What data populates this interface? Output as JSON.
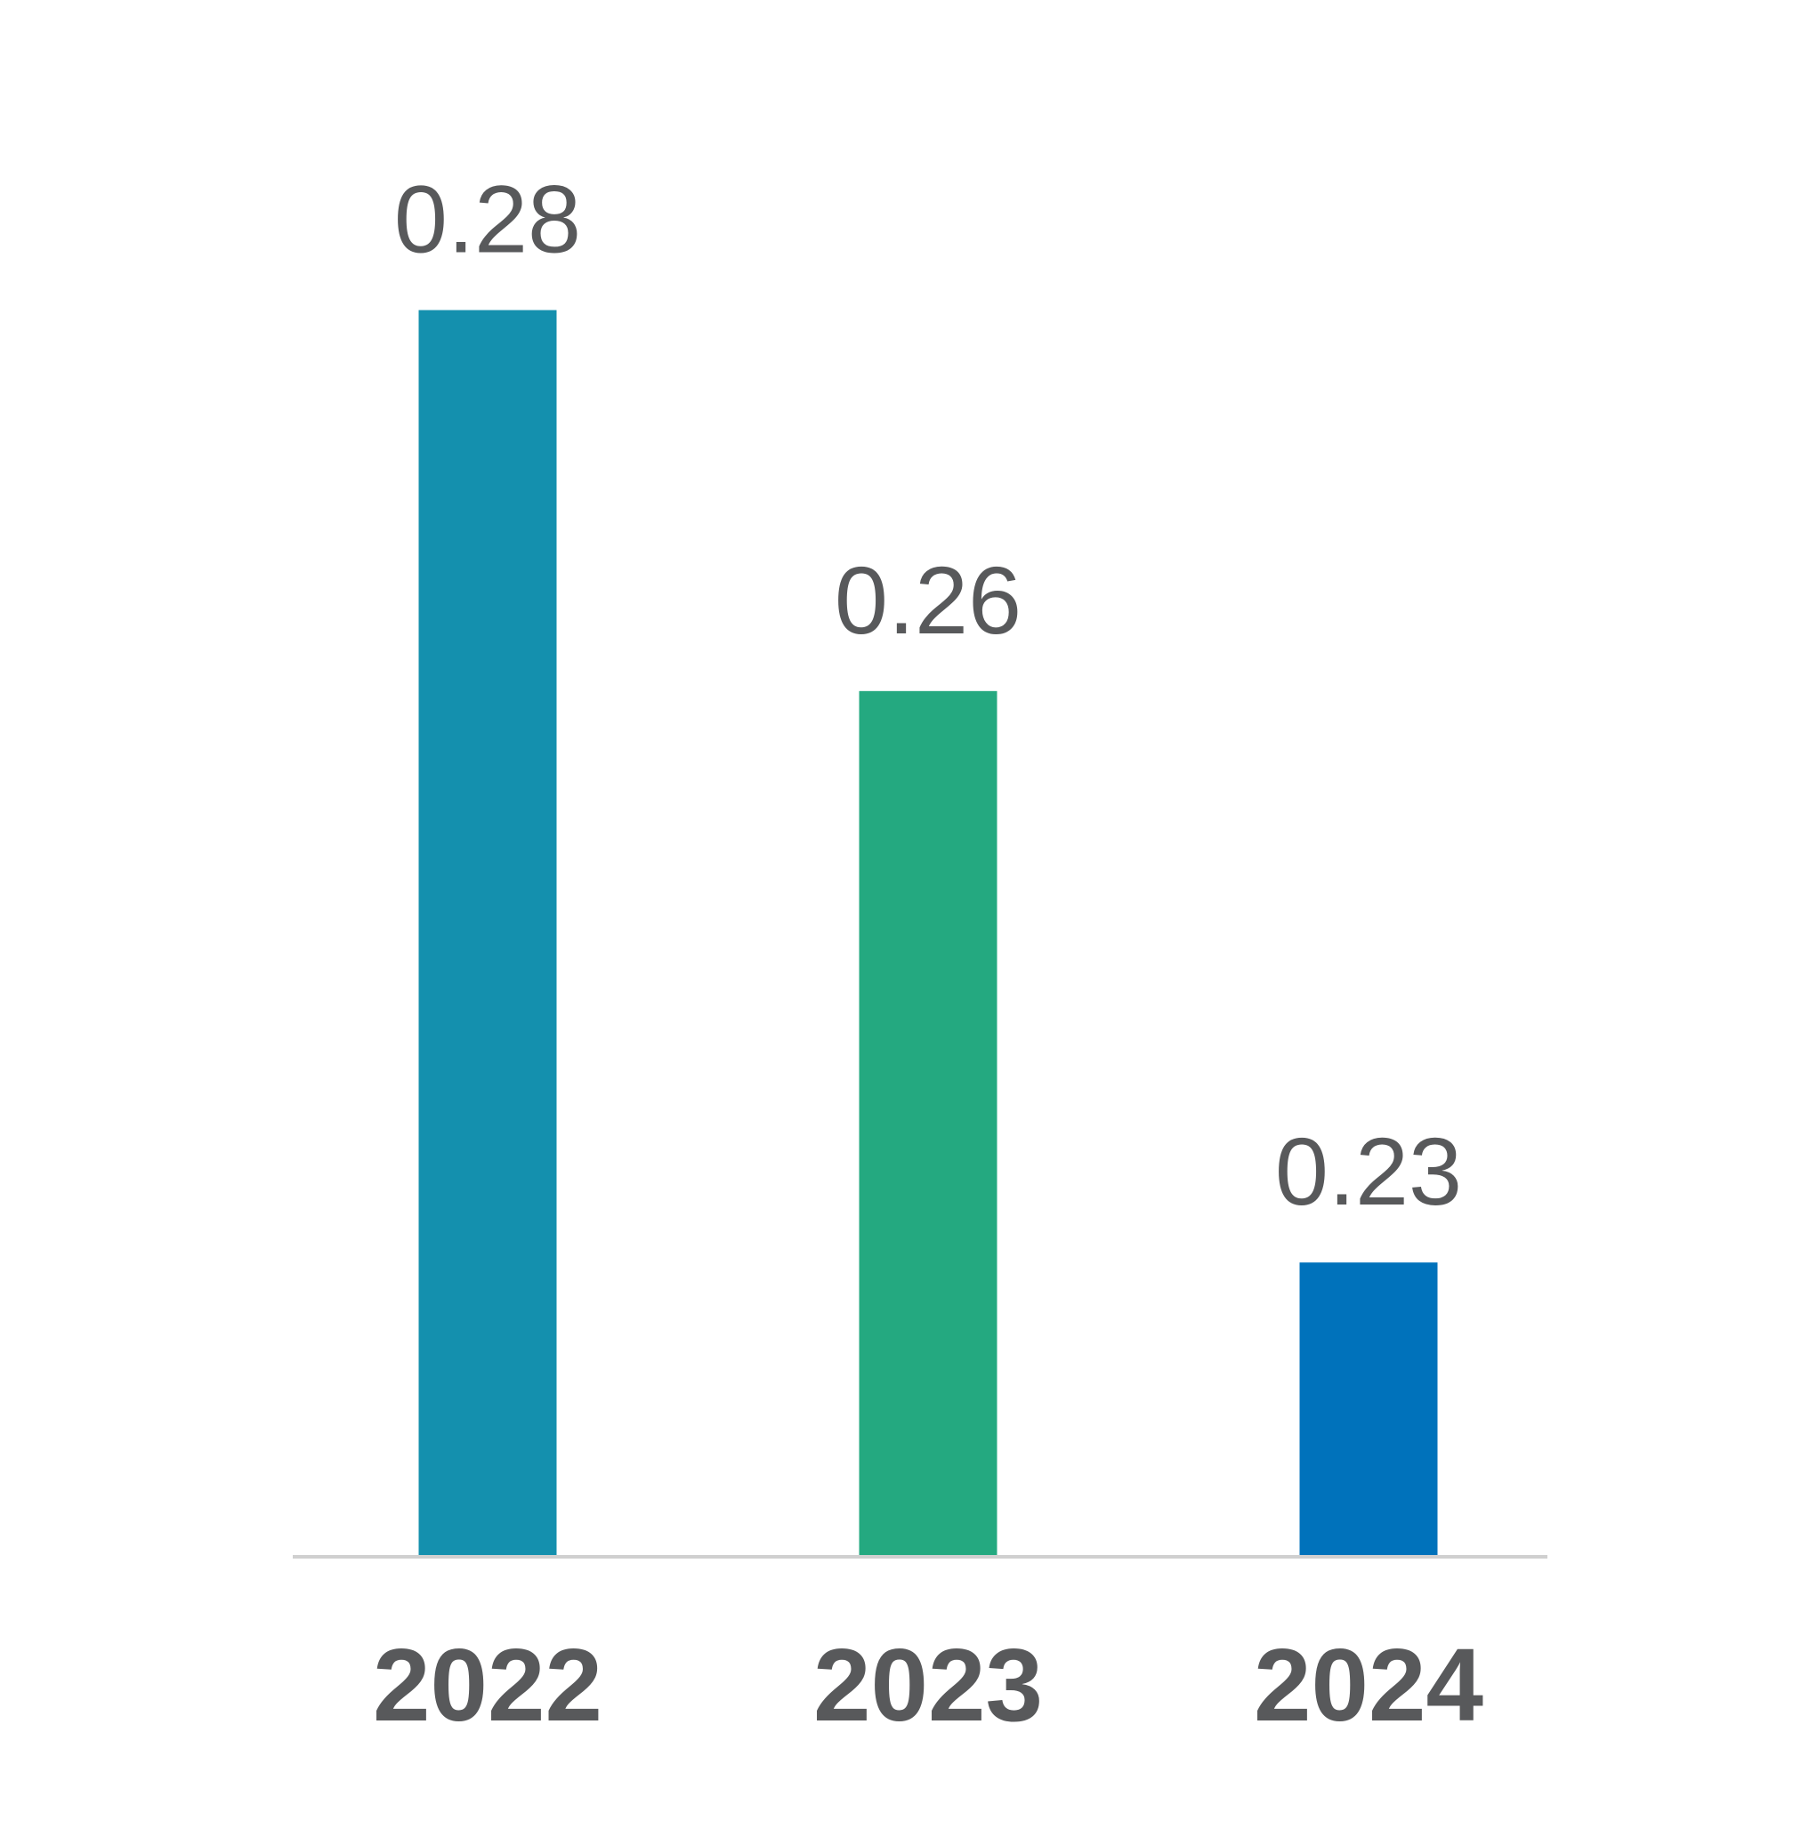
{
  "chart_data": {
    "type": "bar",
    "categories": [
      "2022",
      "2023",
      "2024"
    ],
    "values": [
      0.28,
      0.26,
      0.23
    ],
    "value_labels": [
      "0.28",
      "0.26",
      "0.23"
    ],
    "bar_colors": [
      "#1490ae",
      "#24a980",
      "#0072bb"
    ],
    "label_color": "#58595b",
    "axis_color": "#d0d0d0",
    "title": "",
    "xlabel": "",
    "ylabel": "",
    "grid": false,
    "legend": "none"
  }
}
